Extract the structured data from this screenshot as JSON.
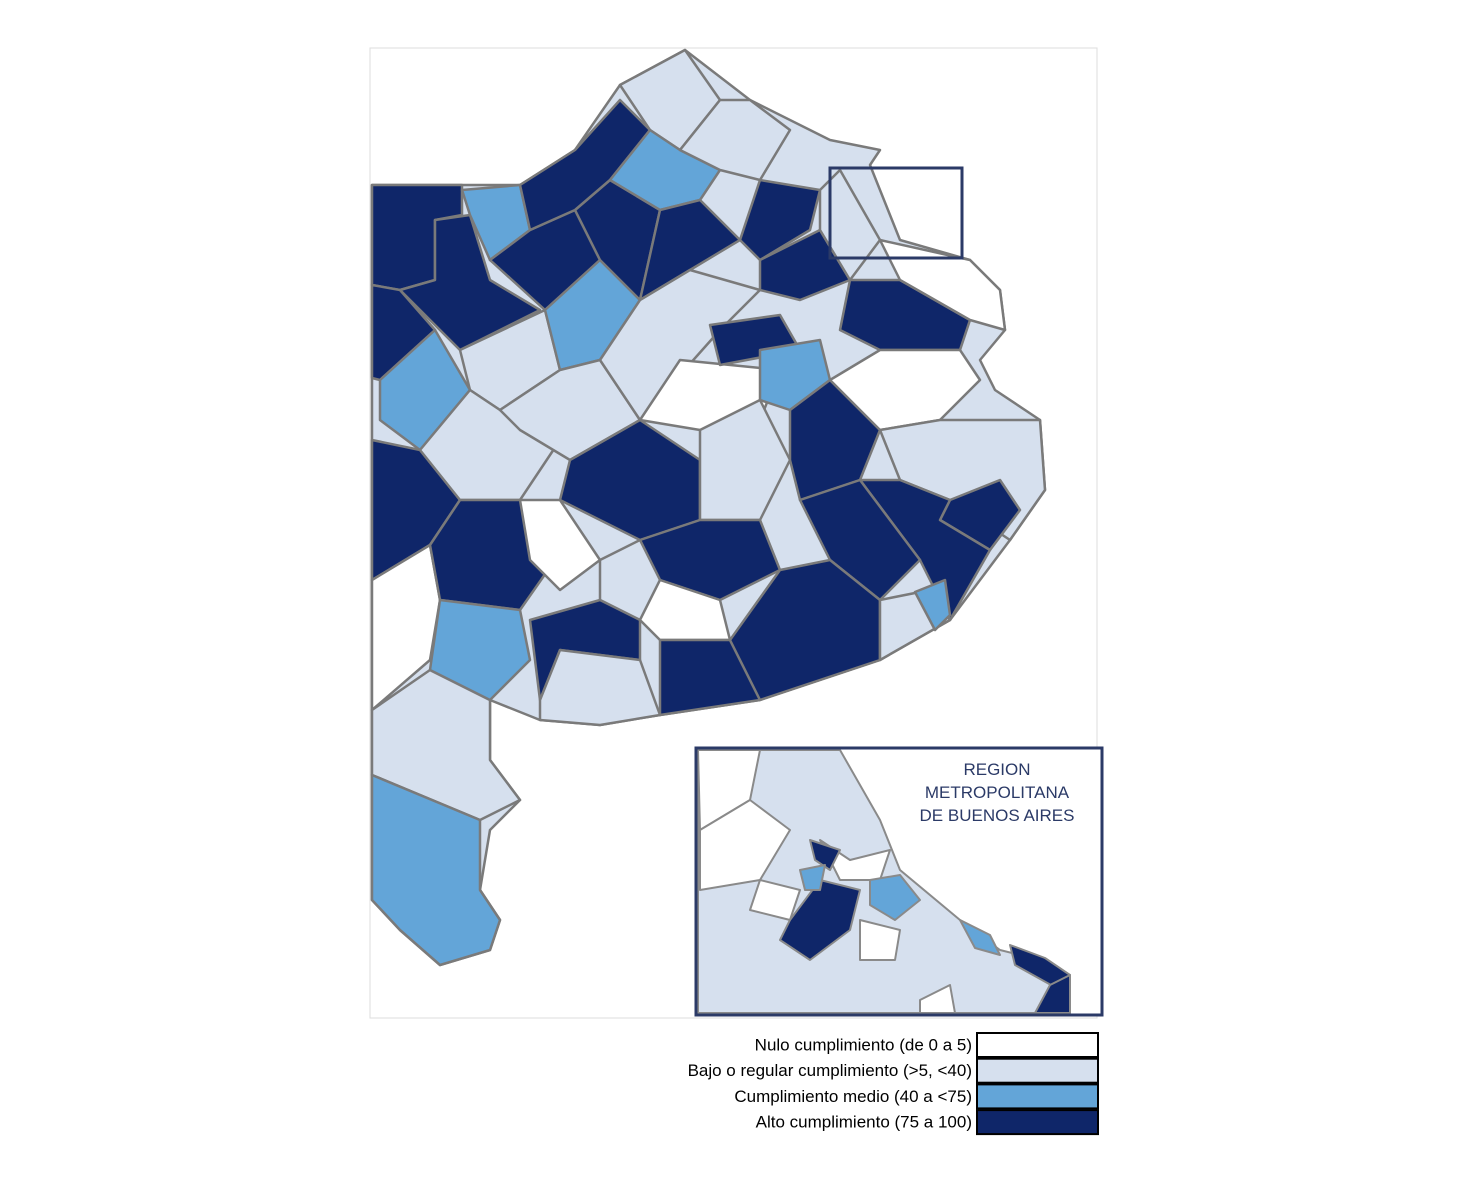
{
  "inset": {
    "title_lines": [
      "REGION",
      "METROPOLITANA",
      "DE BUENOS AIRES"
    ]
  },
  "legend": {
    "items": [
      {
        "label": "Nulo cumplimiento (de 0 a 5)",
        "color": "#ffffff"
      },
      {
        "label": "Bajo o regular cumplimiento (>5, <40)",
        "color": "#d6e0ee"
      },
      {
        "label": "Cumplimiento medio (40 a <75)",
        "color": "#63a5d8"
      },
      {
        "label": "Alto cumplimiento (75 a 100)",
        "color": "#0f2669"
      }
    ]
  }
}
